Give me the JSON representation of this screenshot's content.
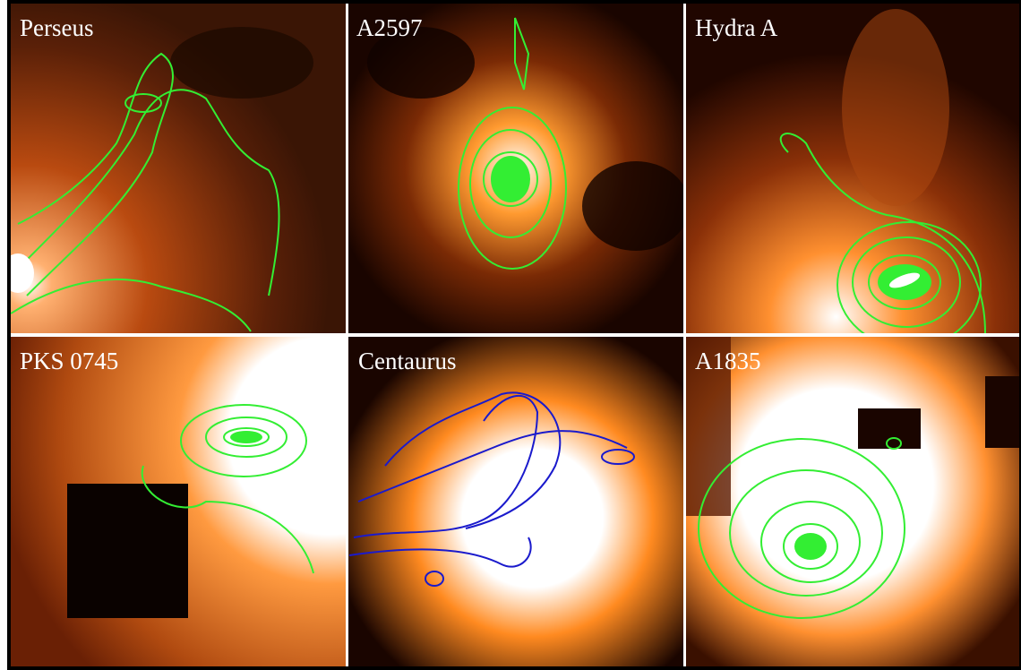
{
  "panels": [
    {
      "label": "Perseus"
    },
    {
      "label": "A2597"
    },
    {
      "label": "Hydra A"
    },
    {
      "label": "PKS 0745"
    },
    {
      "label": "Centaurus"
    },
    {
      "label": "A1835"
    }
  ]
}
